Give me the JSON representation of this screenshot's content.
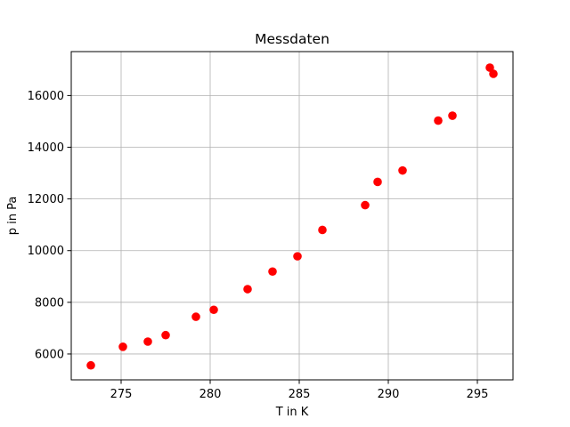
{
  "chart_data": {
    "type": "scatter",
    "title": "Messdaten",
    "xlabel": "T in K",
    "ylabel": "p in Pa",
    "xlim": [
      272.2,
      297.0
    ],
    "ylim": [
      5000,
      17700
    ],
    "xticks": [
      275,
      280,
      285,
      290,
      295
    ],
    "yticks": [
      6000,
      8000,
      10000,
      12000,
      14000,
      16000
    ],
    "xtick_labels": [
      "275",
      "280",
      "285",
      "290",
      "295"
    ],
    "ytick_labels": [
      "6000",
      "8000",
      "10000",
      "12000",
      "14000",
      "16000"
    ],
    "grid": true,
    "marker_color": "#ff0000",
    "points": [
      {
        "x": 273.3,
        "y": 5560
      },
      {
        "x": 275.1,
        "y": 6280
      },
      {
        "x": 276.5,
        "y": 6480
      },
      {
        "x": 277.5,
        "y": 6730
      },
      {
        "x": 279.2,
        "y": 7440
      },
      {
        "x": 280.2,
        "y": 7710
      },
      {
        "x": 282.1,
        "y": 8510
      },
      {
        "x": 283.5,
        "y": 9190
      },
      {
        "x": 284.9,
        "y": 9780
      },
      {
        "x": 286.3,
        "y": 10800
      },
      {
        "x": 288.7,
        "y": 11760
      },
      {
        "x": 289.4,
        "y": 12660
      },
      {
        "x": 290.8,
        "y": 13100
      },
      {
        "x": 292.8,
        "y": 15030
      },
      {
        "x": 293.6,
        "y": 15220
      },
      {
        "x": 295.7,
        "y": 17080
      },
      {
        "x": 295.9,
        "y": 16840
      }
    ]
  }
}
